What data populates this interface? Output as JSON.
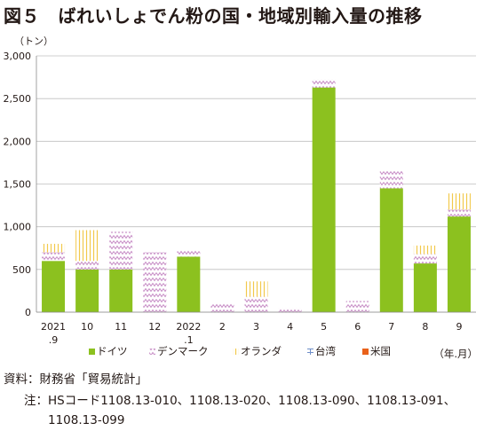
{
  "figure_title": "図５　ばれいしょでん粉の国・地域別輸入量の推移",
  "source": "資料：財務省「貿易統計」",
  "note_label": "注：",
  "note_text": "HSコード1108.13-010、1108.13-020、1108.13-090、1108.13-091、1108.13-099",
  "colors": {
    "germany": "#8cc11f",
    "denmark": "#c68ac4",
    "netherlands": "#f2c94c",
    "taiwan": "#6f8fc9",
    "usa": "#e9611a"
  },
  "chart_data": {
    "type": "bar",
    "stacked": true,
    "ylabel": "（トン）",
    "xlabel": "（年.月）",
    "ylim": [
      0,
      3000
    ],
    "yticks": [
      "0",
      "500",
      "1,000",
      "1,500",
      "2,000",
      "2,500",
      "3,000"
    ],
    "categories": [
      [
        "2021",
        ".9"
      ],
      [
        "10"
      ],
      [
        "11"
      ],
      [
        "12"
      ],
      [
        "2022",
        ".1"
      ],
      [
        "2"
      ],
      [
        "3"
      ],
      [
        "4"
      ],
      [
        "5"
      ],
      [
        "6"
      ],
      [
        "7"
      ],
      [
        "8"
      ],
      [
        "9"
      ]
    ],
    "legend_position": "bottom",
    "series": [
      {
        "name": "ドイツ",
        "key": "germany",
        "values": [
          600,
          500,
          500,
          0,
          650,
          0,
          0,
          0,
          2630,
          0,
          1450,
          570,
          1120
        ]
      },
      {
        "name": "デンマーク",
        "key": "denmark",
        "values": [
          100,
          100,
          440,
          700,
          80,
          100,
          180,
          50,
          100,
          130,
          200,
          110,
          80
        ]
      },
      {
        "name": "オランダ",
        "key": "netherlands",
        "values": [
          100,
          360,
          0,
          0,
          0,
          0,
          180,
          0,
          0,
          0,
          0,
          100,
          190
        ]
      },
      {
        "name": "台湾",
        "key": "taiwan",
        "values": [
          0,
          0,
          0,
          0,
          0,
          0,
          0,
          0,
          0,
          0,
          0,
          0,
          0
        ]
      },
      {
        "name": "米国",
        "key": "usa",
        "values": [
          0,
          0,
          0,
          0,
          0,
          0,
          0,
          0,
          0,
          0,
          0,
          0,
          0
        ]
      }
    ]
  }
}
